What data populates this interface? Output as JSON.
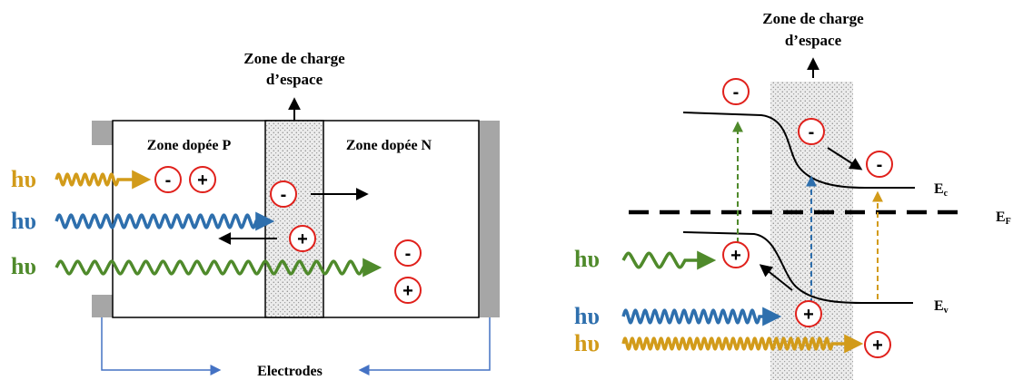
{
  "left": {
    "zone_title": [
      "Zone de charge",
      "d’espace"
    ],
    "region_p_label": "Zone dopée P",
    "region_n_label": "Zone dopée N",
    "electrodes_label": "Electrodes",
    "photon_label": "hυ"
  },
  "right": {
    "zone_title": [
      "Zone de charge",
      "d’espace"
    ],
    "ec_label": "E",
    "ec_sub": "c",
    "ef_label": "E",
    "ef_sub": "F",
    "ev_label": "E",
    "ev_sub": "v",
    "photon_label": "hυ"
  },
  "signs": {
    "minus": "-",
    "plus": "+"
  },
  "colors": {
    "gold": "#d29b1a",
    "blue": "#2e6fad",
    "green": "#4f8a2b",
    "electrode_gray": "#a6a6a6",
    "charge_red": "#e0201b",
    "electrode_link_blue": "#4472c4"
  }
}
